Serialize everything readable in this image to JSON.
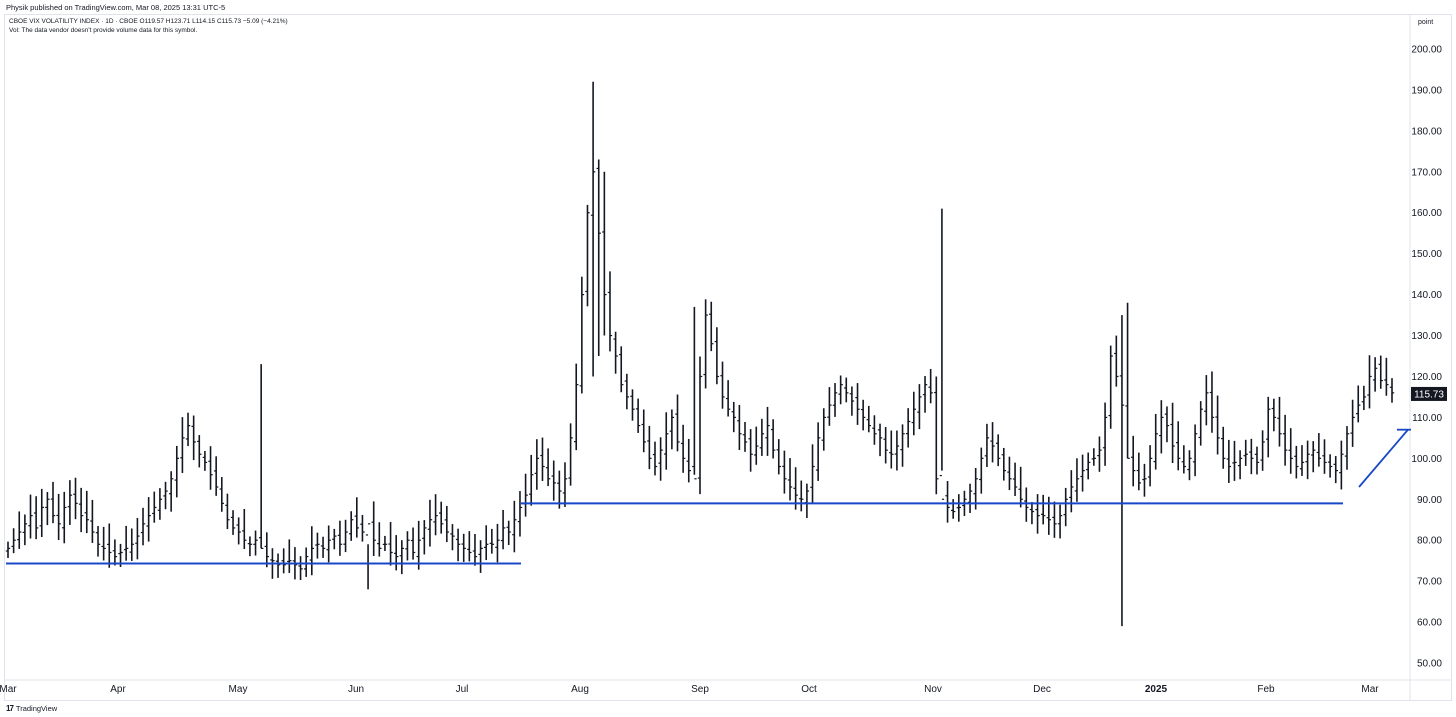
{
  "header": {
    "published": "Physik published on TradingView.com, Mar 08, 2025 13:31 UTC-5",
    "symbol_line": "CBOE VIX VOLATILITY INDEX · 1D · CBOE   O119.57  H123.71  L114.15  C115.73  −5.09 (−4.21%)",
    "volume_note": "Vol: The data vendor doesn't provide volume data for this symbol."
  },
  "footer": {
    "brand": "TradingView"
  },
  "axis": {
    "unit": "point"
  },
  "colors": {
    "bars": "#131722",
    "support_lines": "#1848c8",
    "price_badge_bg": "#131722",
    "price_badge_text": "#ffffff",
    "grid": "#e0e3eb"
  },
  "chart_data": {
    "type": "ohlc",
    "title": "CBOE VIX VOLATILITY INDEX",
    "interval": "1D",
    "ylim": [
      45,
      205
    ],
    "y_ticks": [
      "50.00",
      "60.00",
      "70.00",
      "80.00",
      "90.00",
      "100.00",
      "110.00",
      "120.00",
      "130.00",
      "140.00",
      "150.00",
      "160.00",
      "170.00",
      "180.00",
      "190.00",
      "200.00"
    ],
    "x_months": [
      "Mar",
      "Apr",
      "May",
      "Jun",
      "Jul",
      "Aug",
      "Sep",
      "Oct",
      "Nov",
      "Dec",
      "2025",
      "Feb",
      "Mar"
    ],
    "last_price": "115.73",
    "close_series": [
      78,
      80,
      82,
      84,
      86,
      83,
      88,
      90,
      86,
      84,
      88,
      91,
      89,
      86,
      85,
      82,
      79,
      78,
      77,
      76,
      77,
      78,
      79,
      81,
      84,
      86,
      88,
      90,
      92,
      95,
      100,
      105,
      108,
      104,
      101,
      99,
      96,
      93,
      89,
      85,
      83,
      82,
      80,
      79,
      80,
      78,
      76,
      75,
      74,
      74,
      75,
      74,
      73,
      76,
      78,
      79,
      78,
      80,
      81,
      79,
      82,
      85,
      83,
      82,
      84,
      80,
      78,
      79,
      77,
      76,
      78,
      80,
      77,
      80,
      83,
      85,
      86,
      84,
      82,
      81,
      79,
      78,
      77,
      76,
      78,
      79,
      79,
      80,
      83,
      82,
      85,
      88,
      91,
      96,
      100,
      98,
      95,
      94,
      92,
      95,
      105,
      118,
      140,
      160,
      170,
      155,
      140,
      130,
      125,
      118,
      115,
      112,
      108,
      104,
      100,
      98,
      102,
      106,
      110,
      104,
      100,
      97,
      95,
      120,
      135,
      128,
      120,
      115,
      112,
      110,
      106,
      104,
      101,
      103,
      106,
      108,
      102,
      98,
      95,
      93,
      91,
      90,
      92,
      98,
      105,
      110,
      113,
      116,
      118,
      116,
      114,
      112,
      110,
      108,
      106,
      105,
      102,
      101,
      103,
      106,
      109,
      112,
      115,
      118,
      116,
      95,
      90,
      88,
      87,
      88,
      90,
      92,
      95,
      100,
      105,
      103,
      100,
      97,
      95,
      93,
      90,
      88,
      87,
      86,
      86,
      85,
      84,
      86,
      90,
      93,
      95,
      97,
      99,
      100,
      102,
      110,
      125,
      120,
      113,
      100,
      97,
      94,
      95,
      100,
      106,
      110,
      108,
      103,
      100,
      98,
      100,
      106,
      112,
      116,
      110,
      105,
      100,
      98,
      99,
      100,
      101,
      100,
      99,
      104,
      112,
      110,
      106,
      102,
      100,
      98,
      99,
      101,
      102,
      100,
      99,
      98,
      97,
      101,
      106,
      110,
      113,
      115,
      120,
      122,
      119,
      118,
      116
    ],
    "special_bars": [
      {
        "x": 45,
        "high": 123,
        "low": 78
      },
      {
        "x": 64,
        "high": 79,
        "low": 68
      },
      {
        "x": 84,
        "high": 80,
        "low": 72
      },
      {
        "x": 104,
        "high": 192,
        "low": 120
      },
      {
        "x": 105,
        "high": 173,
        "low": 125
      },
      {
        "x": 106,
        "high": 170,
        "low": 130
      },
      {
        "x": 122,
        "high": 137,
        "low": 96
      },
      {
        "x": 166,
        "high": 161,
        "low": 97
      },
      {
        "x": 198,
        "high": 135,
        "low": 59
      },
      {
        "x": 199,
        "high": 138,
        "low": 100
      }
    ],
    "support_lines": [
      {
        "x_from_month": "Mar",
        "x_to_month": "Jul",
        "value": 74.3
      },
      {
        "x_from_month": "Jul",
        "x_to_month": "Feb",
        "value": 89.0
      }
    ],
    "trend_arrow": {
      "from_value": 93,
      "to_value": 107
    }
  }
}
